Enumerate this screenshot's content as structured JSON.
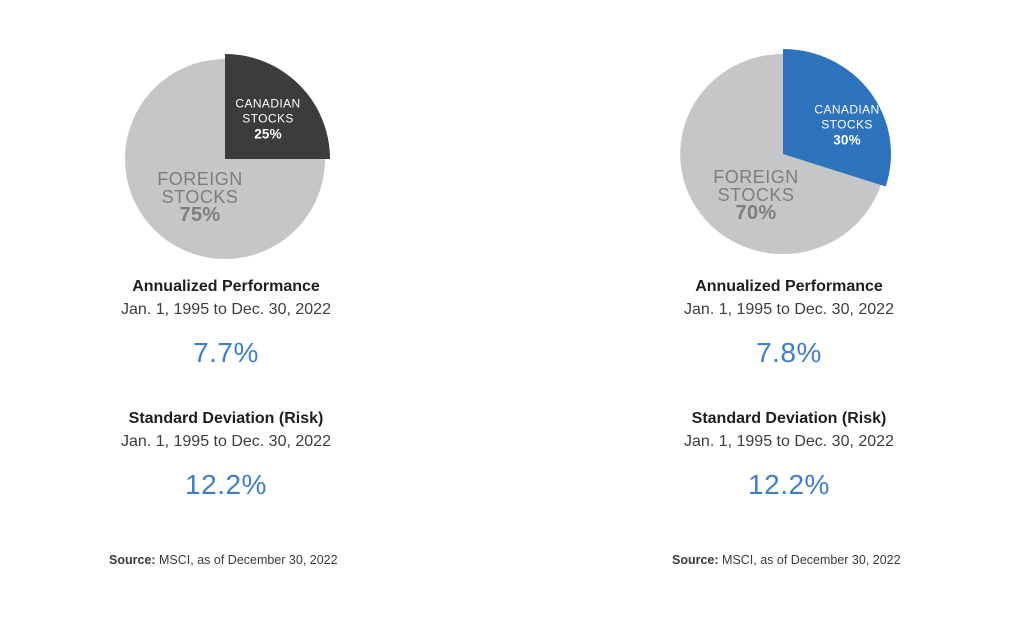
{
  "page": {
    "background": "#ffffff"
  },
  "colors": {
    "value_text_blue": "#3f7ec8",
    "heading_text": "#1f1f1f",
    "period_text": "#3d3d3d",
    "source_text": "#3a3a3a"
  },
  "chart_data": [
    {
      "type": "pie",
      "title": "",
      "start_angle_deg": 0,
      "direction": "clockwise",
      "labels_inside": true,
      "slices": [
        {
          "name": "Canadian Stocks",
          "label_lines": [
            "CANADIAN",
            "STOCKS"
          ],
          "pct_label": "25%",
          "value": 25,
          "color": "#3a3c3d",
          "label_color": "#ffffff"
        },
        {
          "name": "Foreign Stocks",
          "label_lines": [
            "FOREIGN",
            "STOCKS"
          ],
          "pct_label": "75%",
          "value": 75,
          "color": "#c5c6c7",
          "label_color": "#7c7e80"
        }
      ]
    },
    {
      "type": "pie",
      "title": "",
      "start_angle_deg": 0,
      "direction": "clockwise",
      "labels_inside": true,
      "slices": [
        {
          "name": "Canadian Stocks",
          "label_lines": [
            "CANADIAN",
            "STOCKS"
          ],
          "pct_label": "30%",
          "value": 30,
          "color": "#2e74bc",
          "label_color": "#ffffff"
        },
        {
          "name": "Foreign Stocks",
          "label_lines": [
            "FOREIGN",
            "STOCKS"
          ],
          "pct_label": "70%",
          "value": 70,
          "color": "#c5c6c7",
          "label_color": "#7c7e80"
        }
      ]
    }
  ],
  "columns": [
    {
      "performance": {
        "title": "Annualized Performance",
        "period": "Jan. 1, 1995 to Dec. 30, 2022",
        "value": "7.7%"
      },
      "risk": {
        "title": "Standard Deviation (Risk)",
        "period": "Jan. 1, 1995 to Dec. 30, 2022",
        "value": "12.2%"
      },
      "source": {
        "label": "Source:",
        "text": " MSCI, as of December 30, 2022"
      }
    },
    {
      "performance": {
        "title": "Annualized Performance",
        "period": "Jan. 1, 1995 to Dec. 30, 2022",
        "value": "7.8%"
      },
      "risk": {
        "title": "Standard Deviation (Risk)",
        "period": "Jan. 1, 1995 to Dec. 30, 2022",
        "value": "12.2%"
      },
      "source": {
        "label": "Source:",
        "text": " MSCI, as of December 30, 2022"
      }
    }
  ]
}
